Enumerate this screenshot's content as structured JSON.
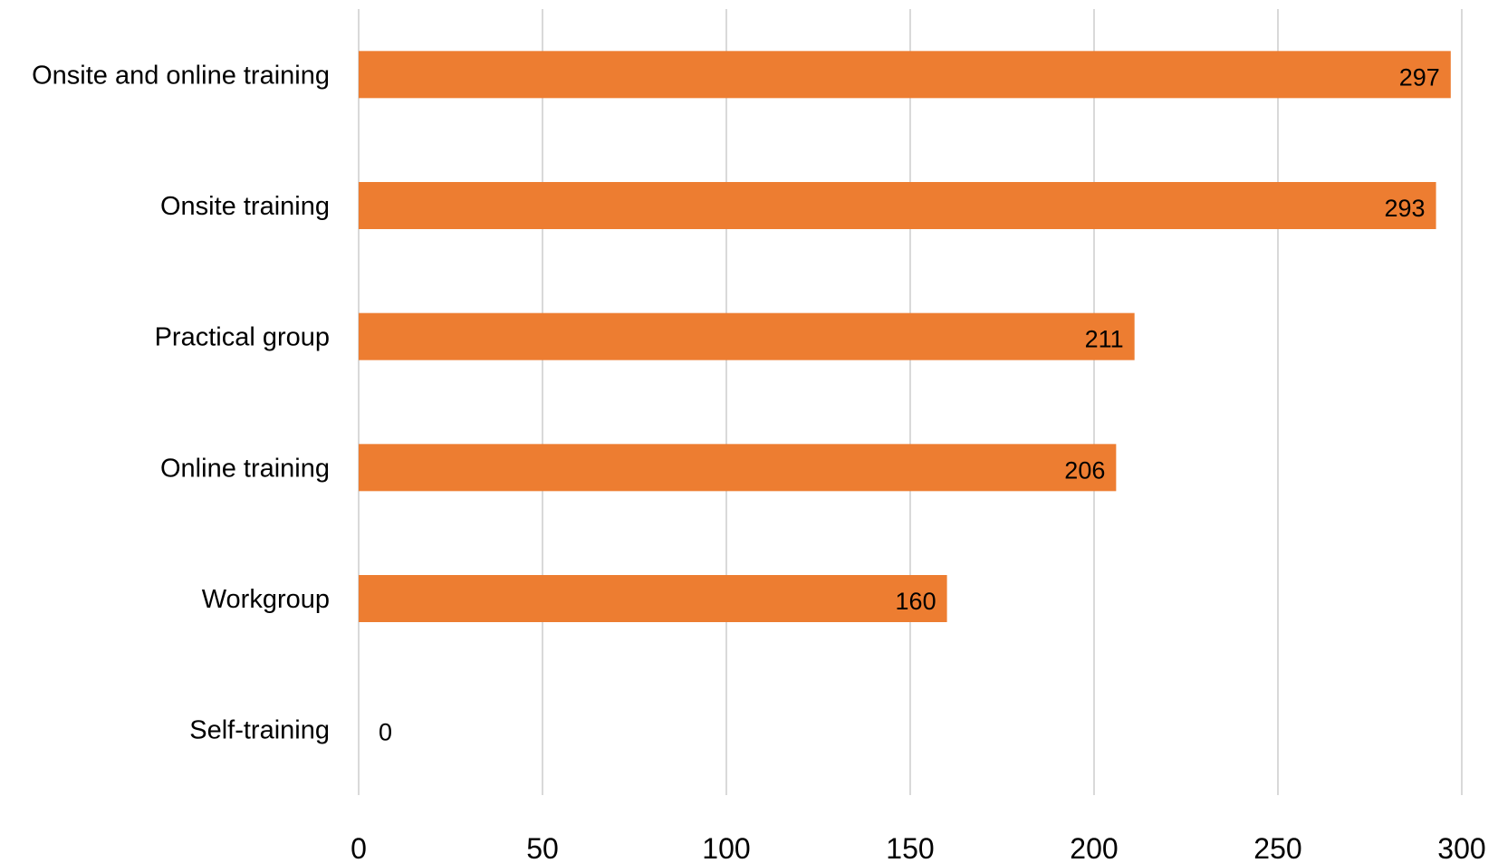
{
  "chart_data": {
    "type": "bar",
    "orientation": "horizontal",
    "categories": [
      "Onsite and online training",
      "Onsite training",
      "Practical group",
      "Online training",
      "Workgroup",
      "Self-training"
    ],
    "values": [
      297,
      293,
      211,
      206,
      160,
      0
    ],
    "xlim": [
      0,
      300
    ],
    "ticks": [
      "0",
      "50",
      "100",
      "150",
      "200",
      "250",
      "300"
    ],
    "grid": "vertical",
    "data_labels": true,
    "colors": {
      "bar": "#ED7D31",
      "grid": "#d9d9d9",
      "text": "#000000"
    }
  }
}
